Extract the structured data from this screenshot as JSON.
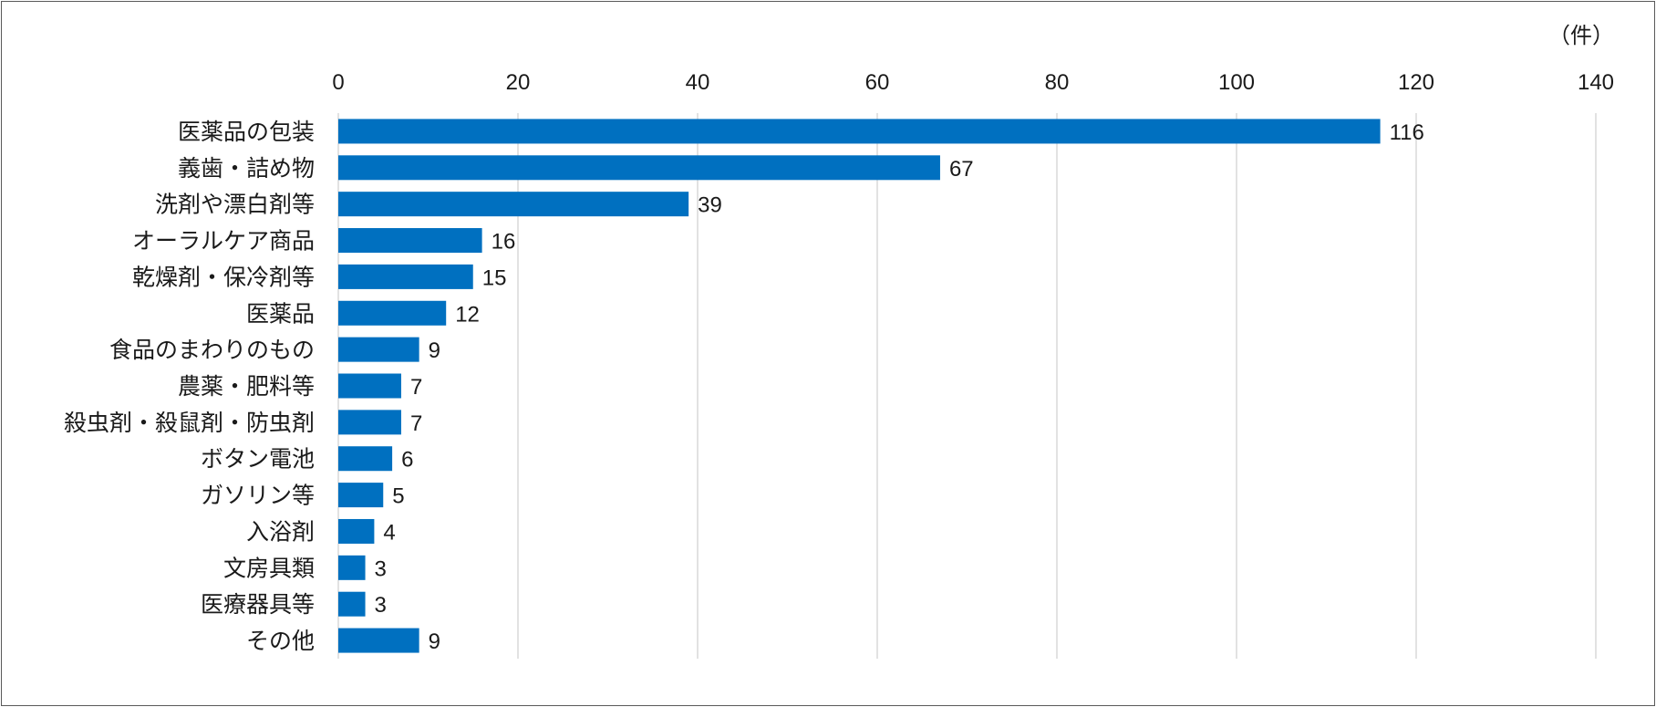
{
  "chart_data": {
    "type": "bar",
    "orientation": "horizontal",
    "unit": "（件）",
    "xlim": [
      0,
      140
    ],
    "ticks": [
      0,
      20,
      40,
      60,
      80,
      100,
      120,
      140
    ],
    "grid": true,
    "bar_color": "#0070C0",
    "categories": [
      "医薬品の包装",
      "義歯・詰め物",
      "洗剤や漂白剤等",
      "オーラルケア商品",
      "乾燥剤・保冷剤等",
      "医薬品",
      "食品のまわりのもの",
      "農薬・肥料等",
      "殺虫剤・殺鼠剤・防虫剤",
      "ボタン電池",
      "ガソリン等",
      "入浴剤",
      "文房具類",
      "医療器具等",
      "その他"
    ],
    "values": [
      116,
      67,
      39,
      16,
      15,
      12,
      9,
      7,
      7,
      6,
      5,
      4,
      3,
      3,
      9
    ]
  }
}
